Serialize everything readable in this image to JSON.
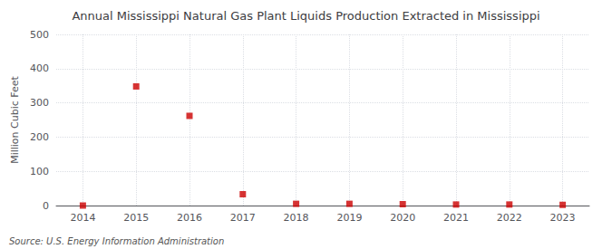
{
  "chart_data": {
    "type": "scatter",
    "title": "Annual Mississippi Natural Gas Plant Liquids Production Extracted in Mississippi",
    "ylabel": "Million Cubic Feet",
    "annotation": "Source: U.S. Energy Information Administration",
    "x": [
      2014,
      2015,
      2016,
      2017,
      2018,
      2019,
      2020,
      2021,
      2022,
      2023
    ],
    "values": [
      0,
      348,
      262,
      33,
      5,
      5,
      4,
      3,
      3,
      2
    ],
    "xlim": [
      2013.5,
      2023.5
    ],
    "ylim": [
      0,
      500
    ],
    "xticks": [
      2014,
      2015,
      2016,
      2017,
      2018,
      2019,
      2020,
      2021,
      2022,
      2023
    ],
    "yticks": [
      0,
      100,
      200,
      300,
      400,
      500
    ],
    "color": "#cc0000",
    "marker": "square",
    "grid": true
  }
}
